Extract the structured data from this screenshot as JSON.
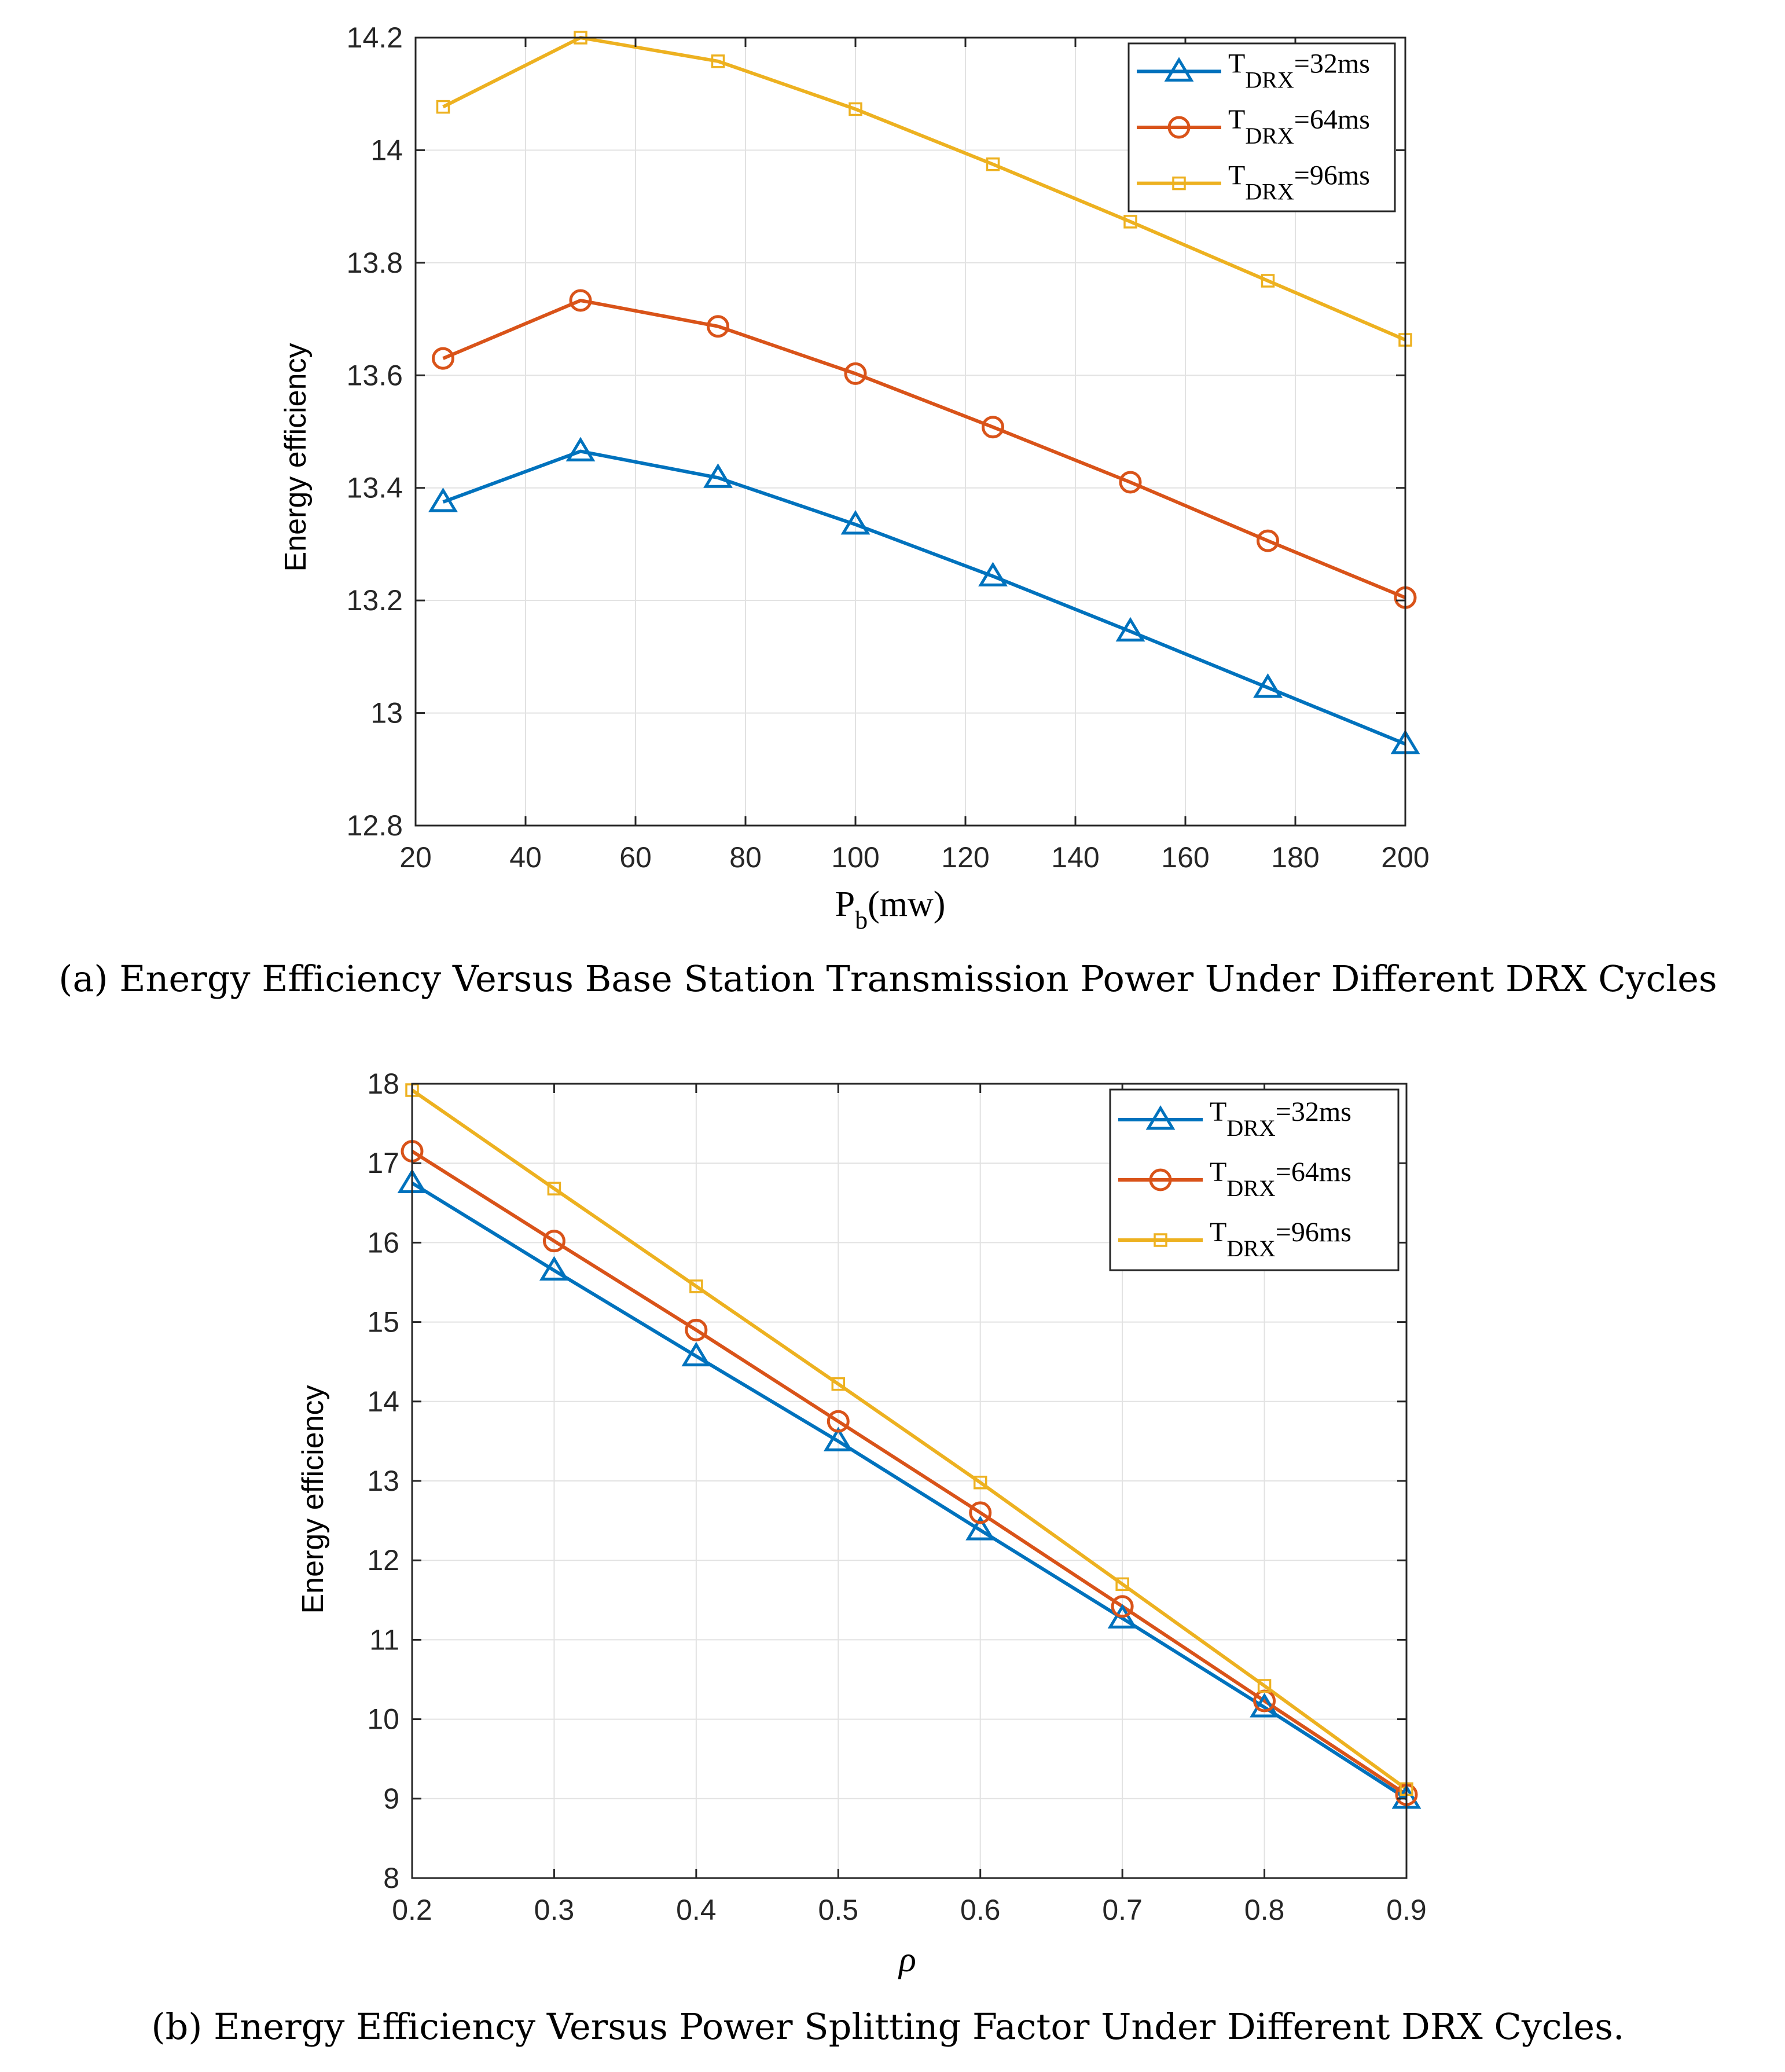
{
  "chart_data": [
    {
      "id": "a",
      "type": "line",
      "caption": "(a) Energy Efficiency Versus Base Station Transmission Power Under Different DRX Cycles",
      "xlabel_main": "P",
      "xlabel_sub": "b",
      "xlabel_unit": "(mw)",
      "ylabel": "Energy efficiency",
      "xlim": [
        20,
        200
      ],
      "ylim": [
        12.8,
        14.2
      ],
      "xticks": [
        20,
        40,
        60,
        80,
        100,
        120,
        140,
        160,
        180,
        200
      ],
      "xtick_labels": [
        "20",
        "40",
        "60",
        "80",
        "100",
        "120",
        "140",
        "160",
        "180",
        "200"
      ],
      "yticks": [
        12.8,
        13.0,
        13.2,
        13.4,
        13.6,
        13.8,
        14.0,
        14.2
      ],
      "ytick_labels": [
        "12.8",
        "13",
        "13.2",
        "13.4",
        "13.6",
        "13.8",
        "14",
        "14.2"
      ],
      "grid": true,
      "legend_position": "top-right",
      "x": [
        25,
        50,
        75,
        100,
        125,
        150,
        175,
        200
      ],
      "series": [
        {
          "name_main": "T",
          "name_sub": "DRX",
          "name_tail": "=32ms",
          "color": "#0072BD",
          "marker": "triangle",
          "values": [
            13.375,
            13.465,
            13.418,
            13.335,
            13.243,
            13.145,
            13.045,
            12.945
          ]
        },
        {
          "name_main": "T",
          "name_sub": "DRX",
          "name_tail": "=64ms",
          "color": "#D95319",
          "marker": "circle",
          "values": [
            13.63,
            13.733,
            13.687,
            13.603,
            13.508,
            13.41,
            13.306,
            13.205
          ]
        },
        {
          "name_main": "T",
          "name_sub": "DRX",
          "name_tail": "=96ms",
          "color": "#EDB120",
          "marker": "square",
          "values": [
            14.077,
            14.2,
            14.158,
            14.073,
            13.975,
            13.873,
            13.768,
            13.663
          ]
        }
      ]
    },
    {
      "id": "b",
      "type": "line",
      "caption": "(b) Energy Efficiency Versus Power Splitting Factor Under Different DRX Cycles.",
      "xlabel_main": "ρ",
      "xlabel_sub": "",
      "xlabel_unit": "",
      "ylabel": "Energy efficiency",
      "xlim": [
        0.2,
        0.9
      ],
      "ylim": [
        8,
        18
      ],
      "xticks": [
        0.2,
        0.3,
        0.4,
        0.5,
        0.6,
        0.7,
        0.8,
        0.9
      ],
      "xtick_labels": [
        "0.2",
        "0.3",
        "0.4",
        "0.5",
        "0.6",
        "0.7",
        "0.8",
        "0.9"
      ],
      "yticks": [
        8,
        9,
        10,
        11,
        12,
        13,
        14,
        15,
        16,
        17,
        18
      ],
      "ytick_labels": [
        "8",
        "9",
        "10",
        "11",
        "12",
        "13",
        "14",
        "15",
        "16",
        "17",
        "18"
      ],
      "grid": true,
      "legend_position": "top-right",
      "x": [
        0.2,
        0.3,
        0.4,
        0.5,
        0.6,
        0.7,
        0.8,
        0.9
      ],
      "series": [
        {
          "name_main": "T",
          "name_sub": "DRX",
          "name_tail": "=32ms",
          "color": "#0072BD",
          "marker": "triangle",
          "values": [
            16.75,
            15.65,
            14.57,
            13.5,
            12.38,
            11.27,
            10.15,
            9.0
          ]
        },
        {
          "name_main": "T",
          "name_sub": "DRX",
          "name_tail": "=64ms",
          "color": "#D95319",
          "marker": "circle",
          "values": [
            17.15,
            16.02,
            14.9,
            13.75,
            12.6,
            11.42,
            10.23,
            9.05
          ]
        },
        {
          "name_main": "T",
          "name_sub": "DRX",
          "name_tail": "=96ms",
          "color": "#EDB120",
          "marker": "square",
          "values": [
            17.92,
            16.68,
            15.45,
            14.22,
            12.98,
            11.7,
            10.42,
            9.12
          ]
        }
      ]
    }
  ]
}
